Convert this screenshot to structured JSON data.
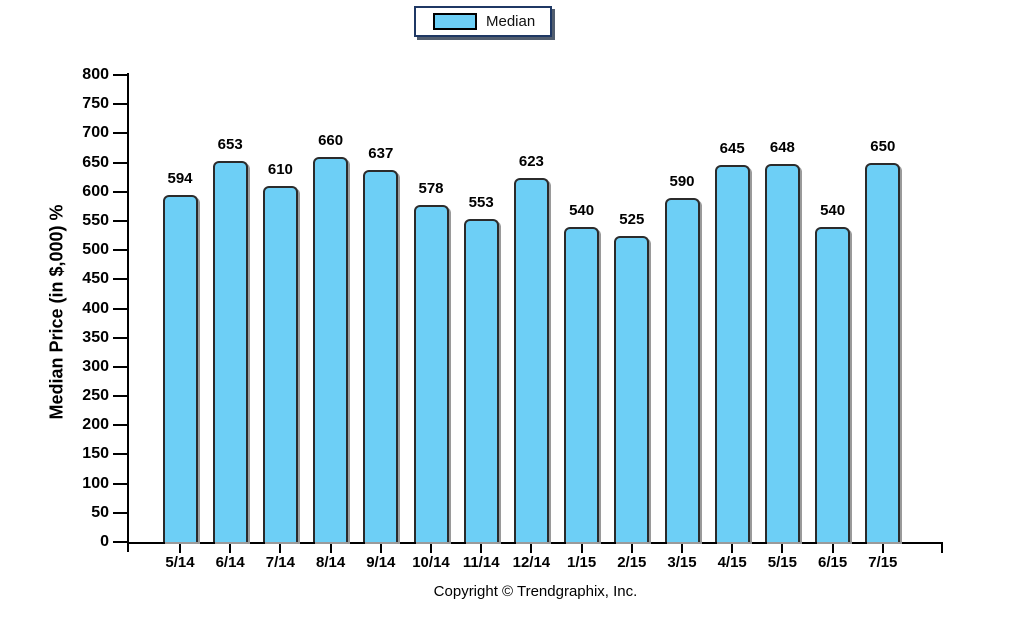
{
  "legend": {
    "label": "Median",
    "swatch_color": "#6DCFF6"
  },
  "chart_data": {
    "type": "bar",
    "title": "",
    "categories": [
      "5/14",
      "6/14",
      "7/14",
      "8/14",
      "9/14",
      "10/14",
      "11/14",
      "12/14",
      "1/15",
      "2/15",
      "3/15",
      "4/15",
      "5/15",
      "6/15",
      "7/15"
    ],
    "series": [
      {
        "name": "Median",
        "values": [
          594,
          653,
          610,
          660,
          637,
          578,
          553,
          623,
          540,
          525,
          590,
          645,
          648,
          540,
          650
        ]
      }
    ],
    "xlabel": "",
    "ylabel": "Median Price (in $,000) %",
    "ylim": [
      0,
      800
    ],
    "ytick_step": 50,
    "grid": false,
    "legend_position": "top-center",
    "value_labels": true,
    "bar_fill": "#6DCFF6",
    "bar_border": "#2b2b2b",
    "axis_color": "#000000"
  },
  "footer": {
    "copyright": "Copyright © Trendgraphix, Inc."
  }
}
